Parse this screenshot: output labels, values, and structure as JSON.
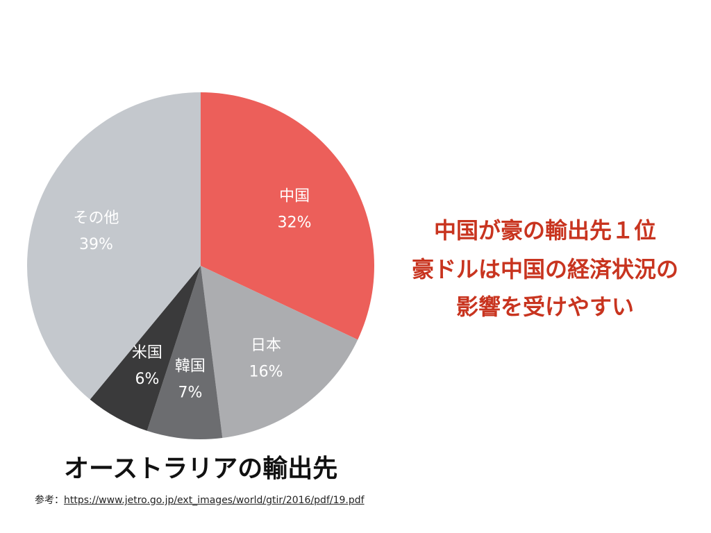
{
  "chart_data": {
    "type": "pie",
    "title": "オーストラリアの輸出先",
    "slices": [
      {
        "name": "中国",
        "value": 32,
        "label": "32%",
        "color": "#ec5f5a",
        "text_color": "#ffffff"
      },
      {
        "name": "日本",
        "value": 16,
        "label": "16%",
        "color": "#acadb0",
        "text_color": "#ffffff"
      },
      {
        "name": "韓国",
        "value": 7,
        "label": "7%",
        "color": "#6c6d70",
        "text_color": "#ffffff"
      },
      {
        "name": "米国",
        "value": 6,
        "label": "6%",
        "color": "#3a3a3b",
        "text_color": "#ffffff"
      },
      {
        "name": "その他",
        "value": 39,
        "label": "39%",
        "color": "#c4c8cd",
        "text_color": "#ffffff"
      }
    ]
  },
  "headline": {
    "line1": "中国が豪の輸出先１位",
    "line2": "豪ドルは中国の経済状況の",
    "line3": "影響を受けやすい",
    "color": "#c8341f"
  },
  "source": {
    "prefix": "参考：",
    "url": "https://www.jetro.go.jp/ext_images/world/gtir/2016/pdf/19.pdf"
  }
}
